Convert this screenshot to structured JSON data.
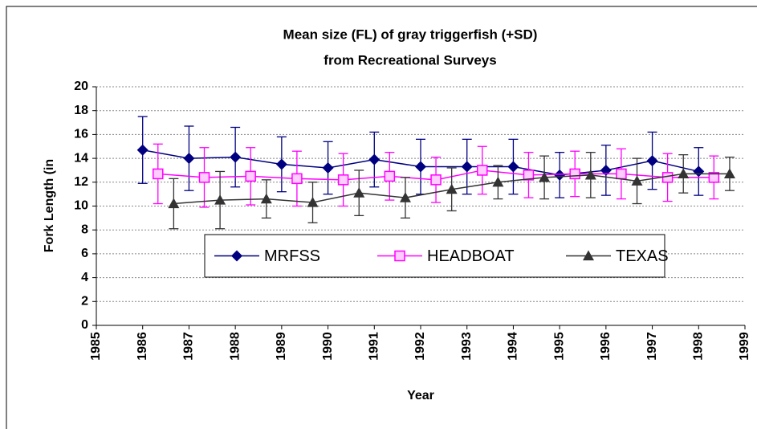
{
  "chart_data": {
    "type": "line",
    "title": "Mean size (FL)  of gray triggerfish (+SD)",
    "subtitle": "from Recreational Surveys",
    "x_label": "Year",
    "y_label": "Fork Length (in",
    "xlim": [
      1985,
      1999
    ],
    "xticks": [
      1985,
      1986,
      1987,
      1988,
      1989,
      1990,
      1991,
      1992,
      1993,
      1994,
      1995,
      1996,
      1997,
      1998,
      1999
    ],
    "ylim": [
      0,
      20
    ],
    "yticks": [
      0,
      2,
      4,
      6,
      8,
      10,
      12,
      14,
      16,
      18,
      20
    ],
    "grid": true,
    "legend": "center",
    "series": [
      {
        "name": "MRFSS",
        "color": "#000080",
        "marker": "diamond",
        "x": [
          1986,
          1987,
          1988,
          1989,
          1990,
          1991,
          1992,
          1993,
          1994,
          1995,
          1996,
          1997,
          1998
        ],
        "values": [
          14.7,
          14.0,
          14.1,
          13.5,
          13.2,
          13.9,
          13.3,
          13.3,
          13.3,
          12.6,
          13.0,
          13.8,
          12.9
        ],
        "errors": [
          2.8,
          2.7,
          2.5,
          2.3,
          2.2,
          2.3,
          2.3,
          2.3,
          2.3,
          1.9,
          2.1,
          2.4,
          2.0
        ]
      },
      {
        "name": "HEADBOAT",
        "color": "#ff00ff",
        "marker": "square",
        "x": [
          1986.33,
          1987.33,
          1988.33,
          1989.33,
          1990.33,
          1991.33,
          1992.33,
          1993.33,
          1994.33,
          1995.33,
          1996.33,
          1997.33,
          1998.33
        ],
        "values": [
          12.7,
          12.4,
          12.5,
          12.3,
          12.2,
          12.5,
          12.2,
          13.0,
          12.6,
          12.7,
          12.7,
          12.4,
          12.4
        ],
        "errors": [
          2.5,
          2.5,
          2.4,
          2.3,
          2.2,
          2.0,
          1.9,
          2.0,
          1.9,
          1.9,
          2.1,
          2.0,
          1.8
        ]
      },
      {
        "name": "TEXAS",
        "color": "#333333",
        "marker": "triangle",
        "x": [
          1986.67,
          1987.67,
          1988.67,
          1989.67,
          1990.67,
          1991.67,
          1992.67,
          1993.67,
          1994.67,
          1995.67,
          1996.67,
          1997.67,
          1998.67
        ],
        "values": [
          10.2,
          10.5,
          10.6,
          10.3,
          11.1,
          10.7,
          11.4,
          12.0,
          12.4,
          12.6,
          12.1,
          12.7,
          12.7
        ],
        "errors": [
          2.1,
          2.4,
          1.6,
          1.7,
          1.9,
          1.7,
          1.8,
          1.4,
          1.8,
          1.9,
          1.9,
          1.6,
          1.4
        ]
      }
    ]
  }
}
